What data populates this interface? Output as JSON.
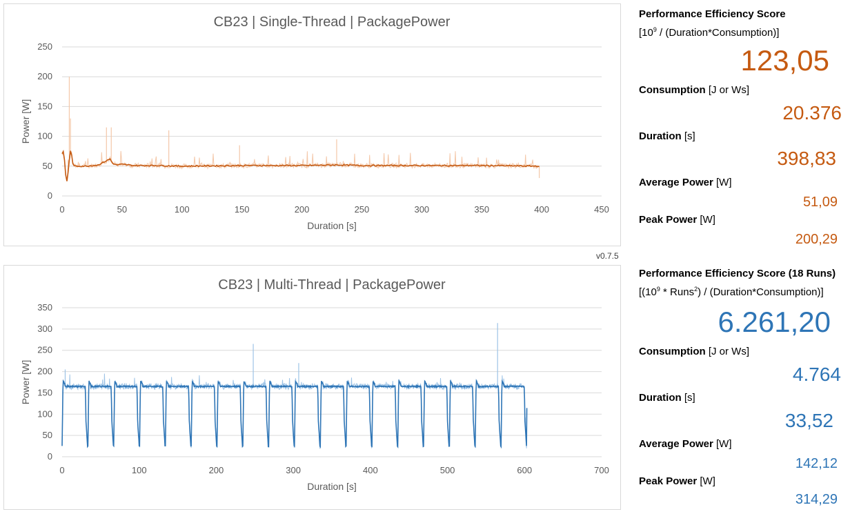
{
  "version": "v0.7.5",
  "colors": {
    "single": "#c55a11",
    "single_light": "#f4c7a8",
    "multi": "#2e75b6",
    "multi_light": "#9dc3e6"
  },
  "chart_data": [
    {
      "type": "line",
      "title": "CB23 | Single-Thread | PackagePower",
      "xlabel": "Duration [s]",
      "ylabel": "Power [W]",
      "xlim": [
        0,
        450
      ],
      "ylim": [
        0,
        250
      ],
      "xticks": [
        0,
        50,
        100,
        150,
        200,
        250,
        300,
        350,
        400,
        450
      ],
      "yticks": [
        0,
        50,
        100,
        150,
        200,
        250
      ],
      "grid": true,
      "series": [
        {
          "x": [
            0,
            1,
            2,
            3,
            4,
            5,
            6,
            7,
            8,
            9,
            10,
            15,
            20,
            30,
            38,
            40,
            42,
            45,
            50,
            60,
            80,
            100,
            150,
            200,
            230,
            250,
            300,
            350,
            398
          ],
          "values": [
            70,
            75,
            60,
            35,
            25,
            40,
            60,
            75,
            68,
            55,
            50,
            50,
            50,
            52,
            60,
            62,
            55,
            52,
            53,
            51,
            51,
            50,
            51,
            51,
            52,
            51,
            51,
            51,
            50
          ]
        }
      ],
      "peaks": [
        {
          "x": 6,
          "value": 200
        },
        {
          "x": 7,
          "value": 130
        },
        {
          "x": 37,
          "value": 115
        },
        {
          "x": 41,
          "value": 115
        },
        {
          "x": 89,
          "value": 110
        },
        {
          "x": 229,
          "value": 95
        },
        {
          "x": 148,
          "value": 85
        },
        {
          "x": 398,
          "value": 30
        }
      ]
    },
    {
      "type": "line",
      "title": "CB23 | Multi-Thread | PackagePower",
      "xlabel": "Duration [s]",
      "ylabel": "Power [W]",
      "xlim": [
        0,
        700
      ],
      "ylim": [
        0,
        350
      ],
      "xticks": [
        0,
        100,
        200,
        300,
        400,
        500,
        600,
        700
      ],
      "yticks": [
        0,
        50,
        100,
        150,
        200,
        250,
        300,
        350
      ],
      "grid": true,
      "runs": 18,
      "run_period": 33.5,
      "run_high": 165,
      "run_start_high": 178,
      "run_low": 25,
      "end_x": 603,
      "end_value": 113,
      "peaks": [
        {
          "x": 4,
          "value": 205
        },
        {
          "x": 248,
          "value": 265
        },
        {
          "x": 307,
          "value": 220
        },
        {
          "x": 565,
          "value": 314
        }
      ]
    }
  ],
  "single": {
    "score_label": "Performance Efficiency Score",
    "formula_prefix": "[10",
    "formula_exp": "9",
    "formula_suffix": " / (Duration*Consumption)]",
    "score": "123,05",
    "consumption_label": "Consumption",
    "consumption_unit": "[J or Ws]",
    "consumption": "20.376",
    "duration_label": "Duration",
    "duration_unit": "[s]",
    "duration": "398,83",
    "avg_label": "Average Power",
    "avg_unit": "[W]",
    "avg": "51,09",
    "peak_label": "Peak Power",
    "peak_unit": "[W]",
    "peak": "200,29"
  },
  "multi": {
    "score_label": "Performance Efficiency Score (18 Runs)",
    "formula_a": "[(10",
    "formula_exp1": "9",
    "formula_b": " * Runs",
    "formula_exp2": "2",
    "formula_c": ") / (Duration*Consumption)]",
    "score": "6.261,20",
    "consumption_label": "Consumption",
    "consumption_unit": "[J or Ws]",
    "consumption": "4.764",
    "duration_label": "Duration",
    "duration_unit": "[s]",
    "duration": "33,52",
    "avg_label": "Average Power",
    "avg_unit": "[W]",
    "avg": "142,12",
    "peak_label": "Peak Power",
    "peak_unit": "[W]",
    "peak": "314,29"
  }
}
